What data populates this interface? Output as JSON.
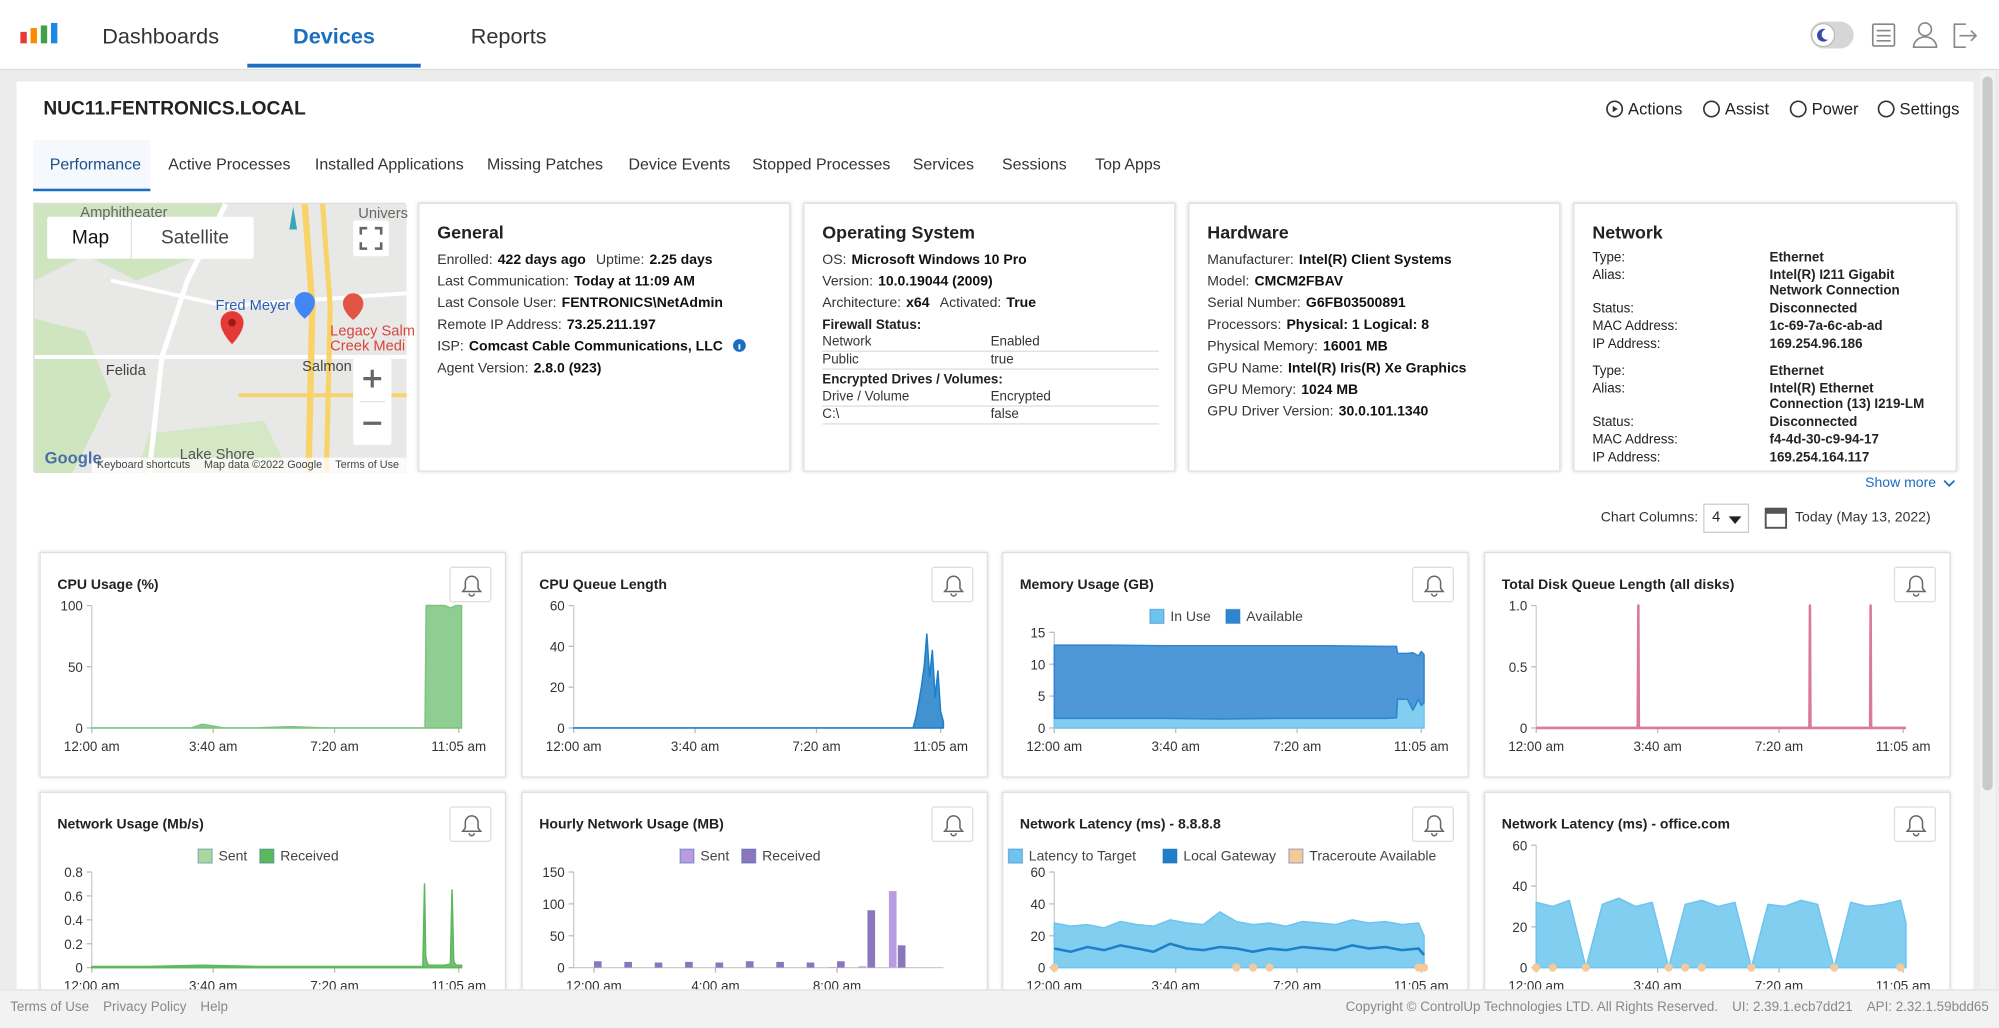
{
  "header": {
    "nav": [
      "Dashboards",
      "Devices",
      "Reports"
    ]
  },
  "device": {
    "name": "NUC11.FENTRONICS.LOCAL",
    "actions": [
      "Actions",
      "Assist",
      "Power",
      "Settings"
    ]
  },
  "tabs": [
    "Performance",
    "Active Processes",
    "Installed Applications",
    "Missing Patches",
    "Device Events",
    "Stopped Processes",
    "Services",
    "Sessions",
    "Top Apps"
  ],
  "map": {
    "buttons": [
      "Map",
      "Satellite"
    ],
    "labels": [
      "Amphitheater",
      "Univers",
      "Fred Meyer",
      "Legacy Salm",
      "Creek Medi",
      "Felida",
      "Salmon",
      "Lake Shore"
    ],
    "logo": "Google",
    "footer": [
      "Keyboard shortcuts",
      "Map data ©2022 Google",
      "Terms of Use"
    ]
  },
  "cards": [
    {
      "title": "General",
      "sections": [
        {
          "rows": [
            [
              [
                "Enrolled:",
                "422 days ago"
              ],
              [
                "Uptime:",
                "2.25 days"
              ]
            ],
            [
              [
                "Last Communication:",
                "Today at 11:09 AM"
              ]
            ],
            [
              [
                "Last Console User:",
                "FENTRONICS\\NetAdmin"
              ]
            ],
            [
              [
                "Remote IP Address:",
                "73.25.211.197"
              ]
            ],
            [
              [
                "ISP:",
                "Comcast Cable Communications, LLC"
              ]
            ],
            [
              [
                "Agent Version:",
                "2.8.0 (923)"
              ]
            ]
          ]
        }
      ]
    },
    {
      "title": "Operating System",
      "sections": [
        {
          "rows": [
            [
              [
                "OS:",
                "Microsoft Windows 10 Pro"
              ]
            ],
            [
              [
                "Version:",
                "10.0.19044 (2009)"
              ]
            ],
            [
              [
                "Architecture:",
                "x64"
              ],
              [
                "Activated:",
                "True"
              ]
            ]
          ]
        },
        {
          "heading": "Firewall Status:",
          "table": [
            [
              "Network",
              "Enabled"
            ],
            [
              "Public",
              "true"
            ]
          ]
        },
        {
          "heading": "Encrypted Drives / Volumes:",
          "table": [
            [
              "Drive / Volume",
              "Encrypted"
            ],
            [
              "C:\\",
              "false"
            ]
          ]
        }
      ]
    },
    {
      "title": "Hardware",
      "sections": [
        {
          "rows": [
            [
              [
                "Manufacturer:",
                "Intel(R) Client Systems"
              ]
            ],
            [
              [
                "Model:",
                "CMCM2FBAV"
              ]
            ],
            [
              [
                "Serial Number:",
                "G6FB03500891"
              ]
            ],
            [
              [
                "Processors:",
                "Physical: 1 Logical: 8"
              ]
            ],
            [
              [
                "Physical Memory:",
                "16001 MB"
              ]
            ],
            [
              [
                "GPU Name:",
                "Intel(R) Iris(R) Xe Graphics"
              ]
            ],
            [
              [
                "GPU Memory:",
                "1024 MB"
              ]
            ],
            [
              [
                "GPU Driver Version:",
                "30.0.101.1340"
              ]
            ]
          ]
        }
      ]
    }
  ],
  "network": {
    "title": "Network",
    "groups": [
      [
        [
          "Type:",
          "Ethernet"
        ],
        [
          "Alias:",
          "Intel(R) I211 Gigabit Network Connection"
        ],
        [
          "Status:",
          "Disconnected"
        ],
        [
          "MAC Address:",
          "1c-69-7a-6c-ab-ad"
        ],
        [
          "IP Address:",
          "169.254.96.186"
        ]
      ],
      [
        [
          "Type:",
          "Ethernet"
        ],
        [
          "Alias:",
          "Intel(R) Ethernet Connection (13) I219-LM"
        ],
        [
          "Status:",
          "Disconnected"
        ],
        [
          "MAC Address:",
          "f4-4d-30-c9-94-17"
        ],
        [
          "IP Address:",
          "169.254.164.117"
        ]
      ]
    ]
  },
  "show_more": "Show more",
  "chart_controls": {
    "label": "Chart Columns:",
    "columns": 4,
    "date": "Today (May 13, 2022)"
  },
  "charts": [
    {
      "type": "area",
      "title": "CPU Usage (%)",
      "x": [
        0,
        60,
        120,
        180,
        200,
        240,
        300,
        360,
        420,
        480,
        540,
        600,
        604,
        606,
        620,
        640,
        650,
        660,
        665,
        670
      ],
      "series": [
        {
          "color": "#7cc47f",
          "values": [
            0,
            0,
            0,
            0,
            3,
            0,
            0,
            1,
            0,
            0,
            0,
            0,
            0,
            100,
            100,
            100,
            98,
            100,
            100,
            100
          ]
        }
      ],
      "xlim": [
        0,
        670
      ],
      "xticks": [
        {
          "value": 0,
          "label": "12:00 am"
        },
        {
          "value": 220,
          "label": "3:40 am"
        },
        {
          "value": 440,
          "label": "7:20 am"
        },
        {
          "value": 665,
          "label": "11:05 am"
        }
      ],
      "ylim": [
        0,
        100
      ],
      "yticks": [
        0,
        50,
        100
      ]
    },
    {
      "type": "area",
      "title": "CPU Queue Length",
      "x": [
        0,
        100,
        200,
        300,
        400,
        500,
        600,
        615,
        620,
        625,
        630,
        635,
        640,
        645,
        650,
        655,
        660,
        665,
        670
      ],
      "series": [
        {
          "color": "#1f7fc8",
          "values": [
            0,
            0,
            0,
            0,
            0,
            0,
            0,
            0,
            5,
            12,
            20,
            30,
            46,
            25,
            38,
            15,
            28,
            8,
            3
          ]
        }
      ],
      "xlim": [
        0,
        670
      ],
      "xticks": [
        {
          "value": 0,
          "label": "12:00 am"
        },
        {
          "value": 220,
          "label": "3:40 am"
        },
        {
          "value": 440,
          "label": "7:20 am"
        },
        {
          "value": 665,
          "label": "11:05 am"
        }
      ],
      "ylim": [
        0,
        60
      ],
      "yticks": [
        0,
        20,
        40,
        60
      ]
    },
    {
      "type": "area",
      "stacked": true,
      "title": "Memory Usage (GB)",
      "x": [
        0,
        100,
        200,
        300,
        400,
        500,
        600,
        620,
        622,
        640,
        650,
        660,
        665,
        670
      ],
      "series": [
        {
          "name": "In Use",
          "color": "#6cc5ef",
          "values": [
            1.5,
            1.5,
            1.5,
            1.4,
            1.5,
            1.5,
            1.5,
            1.6,
            4.5,
            4.5,
            2.8,
            4.5,
            3.5,
            4
          ]
        },
        {
          "name": "Available",
          "color": "#2f86d0",
          "values": [
            11.5,
            11.5,
            11.4,
            11.5,
            11.4,
            11.4,
            11.3,
            11.2,
            7.2,
            7.2,
            9.0,
            6.8,
            8.5,
            7.5
          ]
        }
      ],
      "xlim": [
        0,
        670
      ],
      "xticks": [
        {
          "value": 0,
          "label": "12:00 am"
        },
        {
          "value": 220,
          "label": "3:40 am"
        },
        {
          "value": 440,
          "label": "7:20 am"
        },
        {
          "value": 665,
          "label": "11:05 am"
        }
      ],
      "ylim": [
        0,
        15
      ],
      "yticks": [
        0,
        5,
        10,
        15
      ]
    },
    {
      "type": "line",
      "title": "Total Disk Queue Length (all disks)",
      "x": [
        0,
        184,
        185,
        186,
        495,
        496,
        497,
        605,
        606,
        607,
        670
      ],
      "series": [
        {
          "color": "#d9799f",
          "values": [
            0,
            0,
            1,
            0,
            0,
            1,
            0,
            0,
            1,
            0,
            0
          ]
        }
      ],
      "xlim": [
        0,
        670
      ],
      "xticks": [
        {
          "value": 0,
          "label": "12:00 am"
        },
        {
          "value": 220,
          "label": "3:40 am"
        },
        {
          "value": 440,
          "label": "7:20 am"
        },
        {
          "value": 665,
          "label": "11:05 am"
        }
      ],
      "ylim": [
        0,
        1
      ],
      "yticks": [
        0,
        0.5,
        {
          "value": 1,
          "label": "1.0"
        }
      ]
    },
    {
      "type": "area",
      "title": "Network Usage (Mb/s)",
      "x": [
        0,
        100,
        200,
        300,
        400,
        500,
        600,
        603,
        605,
        607,
        610,
        640,
        650,
        653,
        656,
        660,
        670
      ],
      "series": [
        {
          "name": "Sent",
          "color": "#a9d89f",
          "values": [
            0.005,
            0.005,
            0.005,
            0.005,
            0.005,
            0.005,
            0.005,
            0.01,
            0.005,
            0.005,
            0.005,
            0.005,
            0.005,
            0.01,
            0.005,
            0.005,
            0.005
          ]
        },
        {
          "name": "Received",
          "color": "#5cb85c",
          "values": [
            0.01,
            0.01,
            0.02,
            0.01,
            0.01,
            0.01,
            0.01,
            0.7,
            0.1,
            0.05,
            0.02,
            0.02,
            0.03,
            0.65,
            0.05,
            0.02,
            0.02
          ]
        }
      ],
      "xlim": [
        0,
        670
      ],
      "xticks": [
        {
          "value": 0,
          "label": "12:00 am"
        },
        {
          "value": 220,
          "label": "3:40 am"
        },
        {
          "value": 440,
          "label": "7:20 am"
        },
        {
          "value": 665,
          "label": "11:05 am"
        }
      ],
      "ylim": [
        0,
        0.8
      ],
      "yticks": [
        0,
        0.2,
        0.4,
        0.6,
        0.8
      ]
    },
    {
      "type": "bar",
      "title": "Hourly Network Usage (MB)",
      "x": [
        0,
        60,
        120,
        180,
        240,
        300,
        360,
        420,
        480,
        540,
        600
      ],
      "series": [
        {
          "name": "Sent",
          "color": "#b89be0",
          "values": [
            0,
            0,
            0,
            0,
            0,
            0,
            0,
            0,
            1,
            2,
            120
          ]
        },
        {
          "name": "Received",
          "color": "#8a76bd",
          "values": [
            10,
            9,
            8,
            9,
            8,
            10,
            9,
            8,
            10,
            90,
            35
          ]
        }
      ],
      "xlim": [
        -40,
        690
      ],
      "xticks": [
        {
          "value": 0,
          "label": "12:00 am"
        },
        {
          "value": 240,
          "label": "4:00 am"
        },
        {
          "value": 480,
          "label": "8:00 am"
        }
      ],
      "ylim": [
        0,
        150
      ],
      "yticks": [
        0,
        50,
        100,
        150
      ]
    },
    {
      "type": "line",
      "title": "Network Latency (ms) - 8.8.8.8",
      "x": [
        0,
        30,
        60,
        90,
        120,
        150,
        180,
        210,
        240,
        270,
        300,
        330,
        360,
        390,
        420,
        450,
        480,
        510,
        540,
        570,
        600,
        630,
        660,
        670
      ],
      "series": [
        {
          "name": "Latency to Target",
          "color": "#6cc5ef",
          "mark": "area",
          "values": [
            28,
            26,
            27,
            25,
            29,
            27,
            26,
            30,
            28,
            27,
            35,
            29,
            27,
            28,
            26,
            29,
            28,
            27,
            30,
            28,
            29,
            27,
            28,
            20
          ]
        },
        {
          "name": "Local Gateway",
          "color": "#1f7fc8",
          "mark": "line",
          "values": [
            12,
            10,
            13,
            11,
            14,
            12,
            10,
            15,
            12,
            11,
            13,
            12,
            10,
            12,
            11,
            13,
            12,
            11,
            14,
            12,
            13,
            11,
            12,
            8
          ]
        },
        {
          "name": "Traceroute Available",
          "color": "#f6c99b",
          "mark": "dots",
          "values": [
            0,
            null,
            null,
            null,
            null,
            null,
            null,
            null,
            null,
            null,
            null,
            0,
            0,
            0,
            null,
            null,
            null,
            null,
            null,
            null,
            null,
            null,
            0,
            0
          ]
        }
      ],
      "xlim": [
        0,
        670
      ],
      "xticks": [
        {
          "value": 0,
          "label": "12:00 am"
        },
        {
          "value": 220,
          "label": "3:40 am"
        },
        {
          "value": 440,
          "label": "7:20 am"
        },
        {
          "value": 665,
          "label": "11:05 am"
        }
      ],
      "ylim": [
        0,
        60
      ],
      "yticks": [
        0,
        20,
        40,
        60
      ]
    },
    {
      "type": "area",
      "title": "Network Latency (ms) - office.com",
      "x": [
        0,
        30,
        60,
        90,
        120,
        150,
        180,
        210,
        240,
        270,
        300,
        330,
        360,
        390,
        420,
        450,
        480,
        510,
        540,
        570,
        600,
        630,
        660,
        670
      ],
      "series": [
        {
          "color": "#6cc5ef",
          "values": [
            32,
            30,
            33,
            0,
            31,
            34,
            30,
            32,
            0,
            31,
            33,
            30,
            32,
            0,
            31,
            30,
            33,
            31,
            0,
            32,
            30,
            31,
            33,
            22
          ]
        },
        {
          "color": "#f6c99b",
          "mark": "dots",
          "values": [
            0,
            0,
            null,
            0,
            null,
            null,
            null,
            null,
            0,
            0,
            0,
            null,
            null,
            0,
            null,
            null,
            null,
            null,
            0,
            null,
            null,
            null,
            0,
            null
          ]
        }
      ],
      "xlim": [
        0,
        670
      ],
      "xticks": [
        {
          "value": 0,
          "label": "12:00 am"
        },
        {
          "value": 220,
          "label": "3:40 am"
        },
        {
          "value": 440,
          "label": "7:20 am"
        },
        {
          "value": 665,
          "label": "11:05 am"
        }
      ],
      "ylim": [
        0,
        60
      ],
      "yticks": [
        0,
        20,
        40,
        60
      ]
    }
  ],
  "footer": {
    "links": [
      "Terms of Use",
      "Privacy Policy",
      "Help"
    ],
    "copyright": "Copyright © ControlUp Technologies LTD. All Rights Reserved.",
    "ui": "UI: 2.39.1.ecb7dd21",
    "api": "API: 2.32.1.59bdd65"
  }
}
